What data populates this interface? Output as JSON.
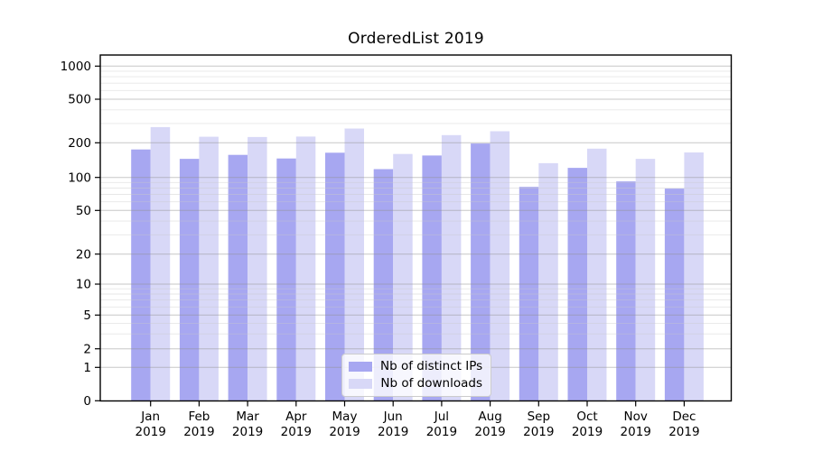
{
  "figure": {
    "title": "OrderedList 2019"
  },
  "chart_data": {
    "type": "bar",
    "title": "OrderedList 2019",
    "y_scale": "symlog",
    "grid": true,
    "legend_position": "lower center",
    "categories_months": [
      "Jan",
      "Feb",
      "Mar",
      "Apr",
      "May",
      "Jun",
      "Jul",
      "Aug",
      "Sep",
      "Oct",
      "Nov",
      "Dec"
    ],
    "categories_year": "2019",
    "y_ticks": [
      0,
      1,
      2,
      5,
      10,
      20,
      50,
      100,
      200,
      500,
      1000
    ],
    "ylim": [
      0,
      2300
    ],
    "series": [
      {
        "name": "Nb of distinct IPs",
        "color": "#a7a7f1",
        "values": [
          175,
          145,
          157,
          146,
          164,
          118,
          155,
          197,
          82,
          121,
          92,
          79
        ]
      },
      {
        "name": "Nb of downloads",
        "color": "#d8d8f7",
        "values": [
          278,
          227,
          226,
          228,
          270,
          160,
          235,
          255,
          133,
          178,
          145,
          165
        ]
      }
    ]
  }
}
